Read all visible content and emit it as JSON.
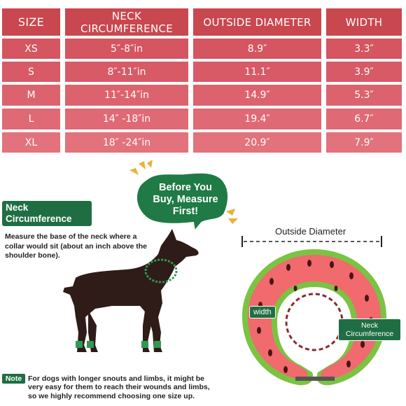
{
  "size_table": {
    "headers": [
      "SIZE",
      "NECK\nCIRCUMFERENCE",
      "OUTSIDE DIAMETER",
      "WIDTH"
    ],
    "rows": [
      {
        "size": "XS",
        "neck": "5″-8″in",
        "diameter": "8.9″",
        "width": "3.3″"
      },
      {
        "size": "S",
        "neck": "8″-11″in",
        "diameter": "11.1″",
        "width": "3.9″"
      },
      {
        "size": "M",
        "neck": "11″-14″in",
        "diameter": "14.9″",
        "width": "5.3″"
      },
      {
        "size": "L",
        "neck": "14″ -18″in",
        "diameter": "19.4″",
        "width": "6.7″"
      },
      {
        "size": "XL",
        "neck": "18″ -24″in",
        "diameter": "20.9″",
        "width": "7.9″"
      }
    ]
  },
  "callout": {
    "line1": "Before You",
    "line2": "Buy, Measure",
    "line3": "First!"
  },
  "neck_section": {
    "badge_line1": "Neck",
    "badge_line2": "Circumference",
    "instruction": "Measure the base of the neck where a collar would sit (about an inch above the shoulder bone)."
  },
  "collar_diagram": {
    "outside_diameter_label": "Outside Diameter",
    "width_label": "width",
    "neck_label_line1": "Neck",
    "neck_label_line2": "Circumference"
  },
  "note": {
    "badge": "Note",
    "line1": "For dogs with longer snouts and limbs, it might be",
    "line2": "very easy for them to reach their wounds and limbs,",
    "line3": "so we highly recommend choosing one size up."
  },
  "colors": {
    "header_red": "#c9474f",
    "row_pink": "#d85a66",
    "brand_green": "#1f6e43",
    "watermelon_red": "#f06a6e",
    "rind_green": "#7cc243"
  }
}
